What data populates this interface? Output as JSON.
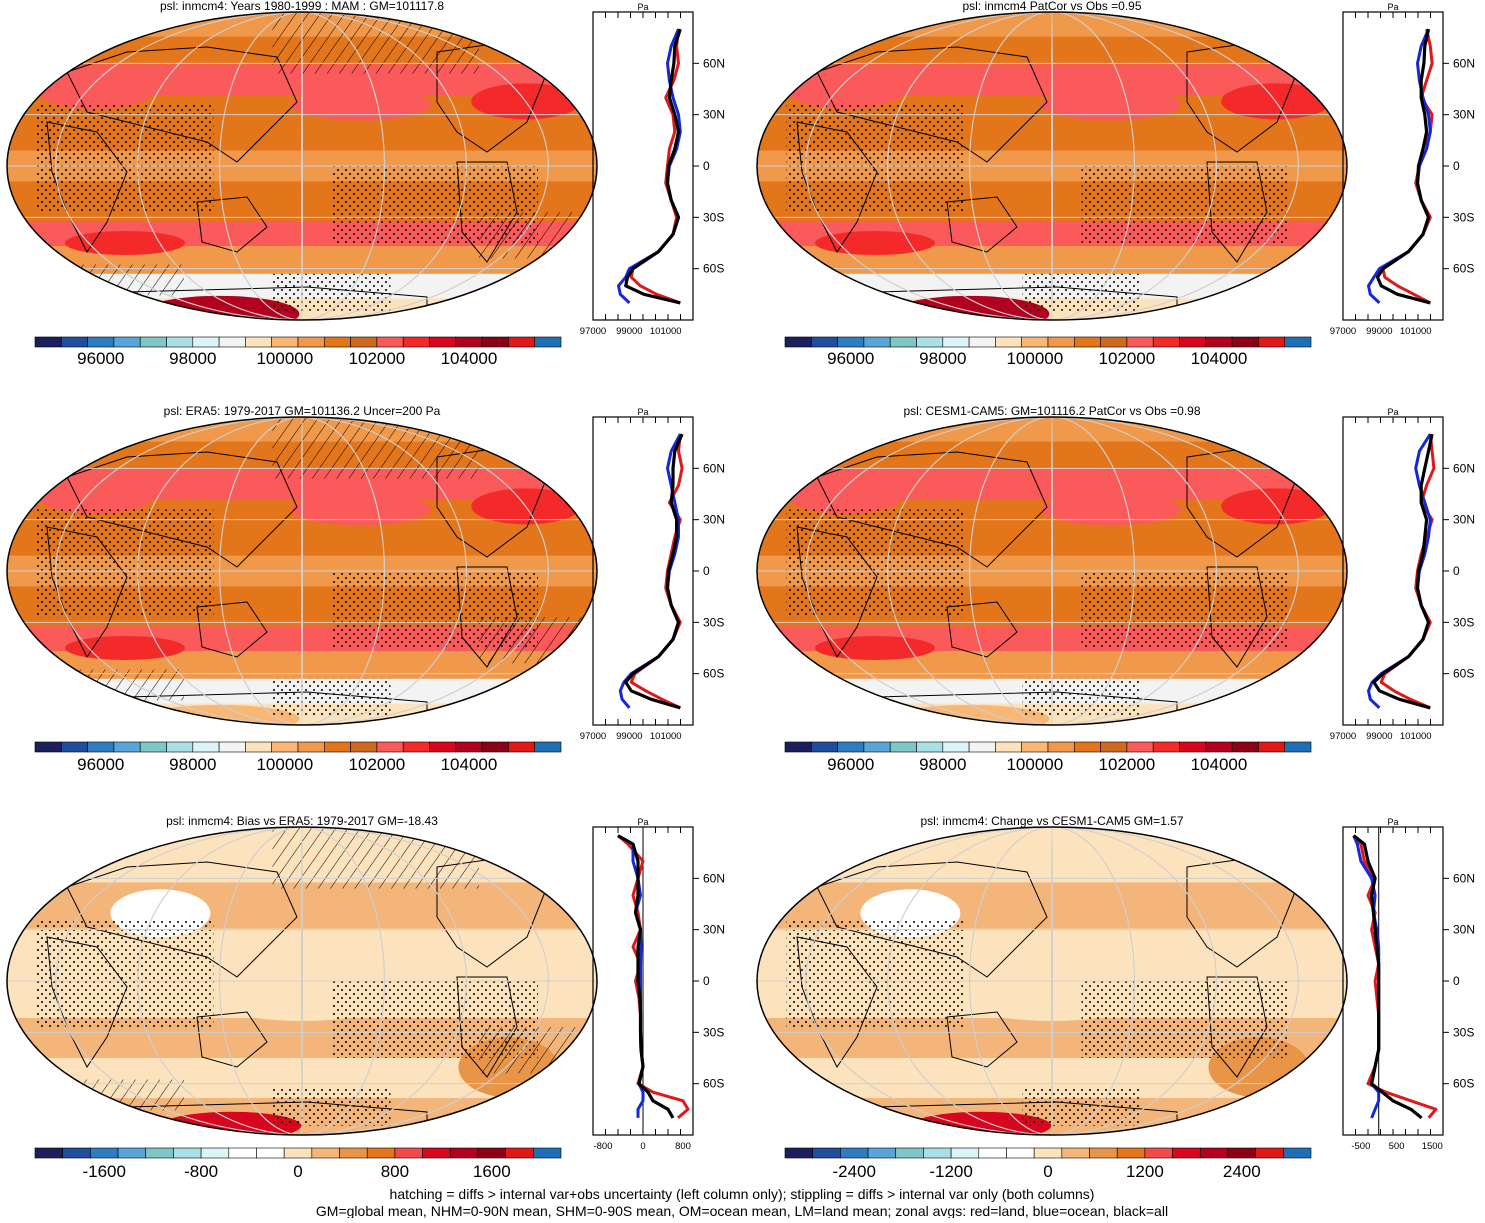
{
  "footer": {
    "line1": "hatching = diffs > internal var+obs uncertainty (left column only); stippling = diffs > internal var only (both columns)",
    "line2": "GM=global mean, NHM=0-90N mean, SHM=0-90S mean, OM=ocean mean, LM=land mean; zonal avgs: red=land, blue=ocean, black=all"
  },
  "colors": {
    "map_scale": [
      "#1b1f5c",
      "#1f4e9c",
      "#2f7dc0",
      "#5aa5d8",
      "#7fc6c6",
      "#a9e0e5",
      "#dcf3f7",
      "#f3f3f3",
      "#fde3bd",
      "#f8b774",
      "#f1994a",
      "#e3761b",
      "#d0691f",
      "#fb5a5a",
      "#f42a2a",
      "#d8051e",
      "#b2001f",
      "#8c0018",
      "#e01818",
      "#1f6fb6"
    ],
    "anom_scale": [
      "#1b1f5c",
      "#1f4e9c",
      "#2f7dc0",
      "#5aa5d8",
      "#7fc6c6",
      "#a9e0e5",
      "#dcf3f7",
      "#ffffff",
      "#ffffff",
      "#fde3bd",
      "#f3b57a",
      "#e89548",
      "#e3761b",
      "#f04a4a",
      "#d8051e",
      "#b2001f",
      "#8c0018",
      "#e01818",
      "#1f6fb6"
    ],
    "land_line": "#e0181a",
    "ocean_line": "#1428d8",
    "all_line": "#000000"
  },
  "zonal_lat_labels": [
    "60N",
    "30N",
    "0",
    "30S",
    "60S"
  ],
  "panels": [
    {
      "title": "psl: inmcm4: Years 1980-1999 : MAM : GM=101117.8",
      "kind": "abs",
      "hatch": true,
      "stipple": true,
      "antarctic_dark": true,
      "colorbar_labels": [
        "96000",
        "98000",
        "100000",
        "102000",
        "104000"
      ],
      "zonal": {
        "unit": "Pa",
        "xlabels": [
          "97000",
          "99000",
          "101000"
        ],
        "xlim": [
          97000,
          102500
        ],
        "zero_line": false,
        "lat": [
          80,
          70,
          60,
          50,
          40,
          30,
          20,
          10,
          0,
          -10,
          -20,
          -30,
          -40,
          -50,
          -60,
          -65,
          -70,
          -75,
          -80
        ],
        "all": [
          101800,
          101500,
          101450,
          101300,
          101200,
          101500,
          101700,
          101500,
          101150,
          101100,
          101300,
          101700,
          101400,
          100600,
          99200,
          98900,
          98800,
          99800,
          101800
        ],
        "land": [
          101700,
          101600,
          101700,
          101450,
          101000,
          101400,
          101500,
          101200,
          101100,
          101000,
          101300,
          101600,
          101400,
          100600,
          99200,
          99100,
          99600,
          100500,
          101800
        ],
        "ocean": [
          101700,
          101300,
          101100,
          101200,
          101400,
          101700,
          101800,
          101600,
          101200,
          101100,
          101300,
          101700,
          101400,
          100600,
          99000,
          98800,
          98400,
          98500,
          99000
        ]
      }
    },
    {
      "title": "psl: inmcm4 PatCor vs Obs =0.95",
      "kind": "abs",
      "hatch": false,
      "stipple": true,
      "antarctic_dark": true,
      "colorbar_labels": [
        "96000",
        "98000",
        "100000",
        "102000",
        "104000"
      ],
      "zonal": {
        "unit": "Pa",
        "xlabels": [
          "97000",
          "99000",
          "101000"
        ],
        "xlim": [
          97000,
          102500
        ],
        "zero_line": false,
        "lat": [
          80,
          70,
          60,
          50,
          40,
          30,
          20,
          10,
          0,
          -10,
          -20,
          -30,
          -40,
          -50,
          -60,
          -65,
          -70,
          -75,
          -80
        ],
        "all": [
          101700,
          101500,
          101450,
          101300,
          101300,
          101500,
          101600,
          101400,
          101150,
          101100,
          101300,
          101700,
          101400,
          100600,
          99200,
          98900,
          99100,
          100000,
          101800
        ],
        "land": [
          101600,
          101800,
          101900,
          101600,
          101300,
          101900,
          101800,
          101400,
          101200,
          101000,
          101300,
          101800,
          101400,
          100600,
          99200,
          99300,
          100000,
          100900,
          101800
        ],
        "ocean": [
          101700,
          101300,
          101100,
          101200,
          101400,
          101700,
          101800,
          101600,
          101200,
          101100,
          101300,
          101700,
          101400,
          100600,
          99000,
          98700,
          98400,
          98500,
          99000
        ]
      }
    },
    {
      "title": "psl: ERA5: 1979-2017 GM=101136.2 Uncer=200 Pa",
      "kind": "abs",
      "hatch": true,
      "stipple": true,
      "antarctic_dark": false,
      "colorbar_labels": [
        "96000",
        "98000",
        "100000",
        "102000",
        "104000"
      ],
      "zonal": {
        "unit": "Pa",
        "xlabels": [
          "97000",
          "99000",
          "101000"
        ],
        "xlim": [
          97000,
          102500
        ],
        "zero_line": false,
        "lat": [
          80,
          70,
          60,
          50,
          40,
          30,
          20,
          10,
          0,
          -10,
          -20,
          -30,
          -40,
          -50,
          -60,
          -65,
          -70,
          -75,
          -80
        ],
        "all": [
          101900,
          101500,
          101400,
          101400,
          101300,
          101600,
          101600,
          101400,
          101150,
          101100,
          101300,
          101700,
          101400,
          100600,
          99200,
          98800,
          99100,
          100200,
          101800
        ],
        "land": [
          101800,
          101700,
          101900,
          101700,
          101200,
          101800,
          101500,
          101300,
          101100,
          101000,
          101300,
          101800,
          101400,
          100600,
          99300,
          99100,
          99900,
          100800,
          101800
        ],
        "ocean": [
          101800,
          101300,
          101100,
          101300,
          101500,
          101700,
          101700,
          101500,
          101200,
          101100,
          101300,
          101700,
          101400,
          100600,
          99100,
          98700,
          98500,
          98600,
          99000
        ]
      }
    },
    {
      "title": "psl: CESM1-CAM5: GM=101116.2 PatCor vs Obs =0.98",
      "kind": "abs",
      "hatch": false,
      "stipple": true,
      "antarctic_dark": false,
      "colorbar_labels": [
        "96000",
        "98000",
        "100000",
        "102000",
        "104000"
      ],
      "zonal": {
        "unit": "Pa",
        "xlabels": [
          "97000",
          "99000",
          "101000"
        ],
        "xlim": [
          97000,
          102500
        ],
        "zero_line": false,
        "lat": [
          80,
          70,
          60,
          50,
          40,
          30,
          20,
          10,
          0,
          -10,
          -20,
          -30,
          -40,
          -50,
          -60,
          -65,
          -70,
          -75,
          -80
        ],
        "all": [
          101900,
          101700,
          101500,
          101300,
          101300,
          101600,
          101500,
          101400,
          101150,
          101100,
          101300,
          101700,
          101400,
          100600,
          99200,
          98700,
          99000,
          100100,
          101800
        ],
        "land": [
          101800,
          101900,
          102000,
          101600,
          101300,
          101900,
          101600,
          101300,
          101100,
          101000,
          101300,
          101800,
          101400,
          100600,
          99300,
          99100,
          99800,
          100700,
          101800
        ],
        "ocean": [
          101800,
          101200,
          101000,
          101200,
          101500,
          101800,
          101700,
          101500,
          101200,
          101100,
          101300,
          101700,
          101400,
          100600,
          99100,
          98600,
          98400,
          98500,
          99000
        ]
      }
    },
    {
      "title": "psl: inmcm4: Bias vs ERA5: 1979-2017 GM=-18.43",
      "kind": "anom",
      "hatch": true,
      "stipple": true,
      "antarctic_dark": true,
      "colorbar_labels": [
        "-1600",
        "-800",
        "0",
        "800",
        "1600"
      ],
      "zonal": {
        "unit": "Pa",
        "xlabels": [
          "-800",
          "0",
          "800"
        ],
        "xlim": [
          -1000,
          1000
        ],
        "zero_line": true,
        "lat": [
          85,
          80,
          70,
          60,
          50,
          40,
          30,
          20,
          10,
          0,
          -10,
          -20,
          -30,
          -40,
          -50,
          -60,
          -65,
          -70,
          -75,
          -80
        ],
        "all": [
          -500,
          -200,
          -100,
          -100,
          -100,
          -150,
          -50,
          -100,
          -100,
          -100,
          -60,
          -50,
          -50,
          -40,
          0,
          -80,
          100,
          200,
          500,
          600
        ],
        "land": [
          -500,
          -300,
          0,
          -100,
          -200,
          -100,
          -50,
          -200,
          -50,
          -150,
          -80,
          -50,
          -50,
          -40,
          0,
          -100,
          200,
          800,
          900,
          700
        ],
        "ocean": [
          -500,
          -200,
          -200,
          -100,
          -50,
          -150,
          -50,
          -40,
          -50,
          -50,
          -50,
          -50,
          -50,
          -40,
          0,
          -80,
          0,
          0,
          -100,
          -100
        ]
      }
    },
    {
      "title": "psl: inmcm4: Change vs CESM1-CAM5 GM=1.57",
      "kind": "anom",
      "hatch": false,
      "stipple": true,
      "antarctic_dark": true,
      "colorbar_labels": [
        "-2400",
        "-1200",
        "0",
        "1200",
        "2400"
      ],
      "zonal": {
        "unit": "Pa",
        "xlabels": [
          "-500",
          "500",
          "1500"
        ],
        "xlim": [
          -1000,
          1800
        ],
        "zero_line": true,
        "lat": [
          85,
          80,
          70,
          60,
          50,
          40,
          30,
          20,
          10,
          0,
          -10,
          -20,
          -30,
          -40,
          -50,
          -60,
          -65,
          -70,
          -75,
          -80
        ],
        "all": [
          -700,
          -400,
          -300,
          -100,
          -200,
          -150,
          -100,
          -50,
          0,
          0,
          0,
          0,
          0,
          0,
          -100,
          -200,
          100,
          400,
          900,
          1200
        ],
        "land": [
          -700,
          -500,
          -400,
          -100,
          -300,
          -100,
          -200,
          -100,
          0,
          -100,
          -50,
          0,
          0,
          0,
          -100,
          -300,
          200,
          900,
          1600,
          1400
        ],
        "ocean": [
          -700,
          -600,
          -500,
          -200,
          -100,
          -150,
          -50,
          0,
          0,
          0,
          0,
          0,
          0,
          0,
          -100,
          -200,
          0,
          0,
          -100,
          -200
        ]
      }
    }
  ]
}
